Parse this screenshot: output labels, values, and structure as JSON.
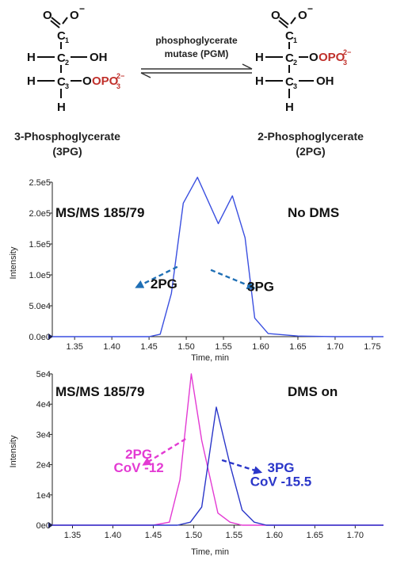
{
  "reaction": {
    "enzyme_line1": "phosphoglycerate",
    "enzyme_line2": "mutase (PGM)",
    "left_name_line1": "3-Phosphoglycerate",
    "left_name_line2": "(3PG)",
    "right_name_line1": "2-Phosphoglycerate",
    "right_name_line2": "(2PG)",
    "atoms": {
      "O": "O",
      "Ominus": "O",
      "minus": "−",
      "H": "H",
      "OH": "OH",
      "C": "C",
      "c1": "1",
      "c2": "2",
      "c3": "3",
      "OPO3": "OPO",
      "p3": "3",
      "p2m": "2−"
    },
    "colors": {
      "phosphate": "#c0302b"
    }
  },
  "chart_data": [
    {
      "type": "line",
      "title": "MS/MS 185/79",
      "subtitle": "No DMS",
      "xlabel": "Time, min",
      "ylabel": "Intensity",
      "xlim": [
        1.32,
        1.765
      ],
      "ylim": [
        0,
        250000
      ],
      "xticks": [
        1.35,
        1.4,
        1.45,
        1.5,
        1.55,
        1.6,
        1.65,
        1.7,
        1.75
      ],
      "xtick_labels": [
        "1.35",
        "1.40",
        "1.45",
        "1.50",
        "1.55",
        "1.60",
        "1.65",
        "1.70",
        "1.75"
      ],
      "yticks": [
        0,
        50000,
        100000,
        150000,
        200000,
        250000
      ],
      "ytick_labels": [
        "0.0e0",
        "5.0e4",
        "1.0e5",
        "1.5e5",
        "2.0e5",
        "2.5e5"
      ],
      "grid": false,
      "series": [
        {
          "color": "#3a4fe0",
          "x": [
            1.32,
            1.35,
            1.4,
            1.45,
            1.465,
            1.48,
            1.496,
            1.515,
            1.543,
            1.562,
            1.579,
            1.592,
            1.61,
            1.65,
            1.7,
            1.765
          ],
          "y": [
            0,
            0,
            0,
            0,
            4000,
            70000,
            216000,
            258000,
            183000,
            228000,
            160000,
            30000,
            5000,
            1000,
            0,
            0
          ]
        }
      ],
      "annotations": [
        {
          "text": "2PG",
          "x": 1.47,
          "y": 78000,
          "color": "#111111",
          "arrow_from": [
            1.488,
            113000
          ],
          "arrow_to": [
            1.433,
            80000
          ],
          "arrow_color": "#1f6fb5"
        },
        {
          "text": "3PG",
          "x": 1.6,
          "y": 74000,
          "color": "#111111",
          "arrow_from": [
            1.533,
            108000
          ],
          "arrow_to": [
            1.591,
            79000
          ],
          "arrow_color": "#1f6fb5"
        }
      ]
    },
    {
      "type": "line",
      "title": "MS/MS 185/79",
      "subtitle": "DMS on",
      "xlabel": "Time, min",
      "ylabel": "Intensity",
      "xlim": [
        1.325,
        1.735
      ],
      "ylim": [
        0,
        50000
      ],
      "xticks": [
        1.35,
        1.4,
        1.45,
        1.5,
        1.55,
        1.6,
        1.65,
        1.7
      ],
      "xtick_labels": [
        "1.35",
        "1.40",
        "1.45",
        "1.50",
        "1.55",
        "1.60",
        "1.65",
        "1.70"
      ],
      "yticks": [
        0,
        10000,
        20000,
        30000,
        40000,
        50000
      ],
      "ytick_labels": [
        "0e0",
        "1e4",
        "2e4",
        "3e4",
        "4e4",
        "5e4"
      ],
      "grid": false,
      "series": [
        {
          "color": "#e33ad3",
          "x": [
            1.325,
            1.45,
            1.47,
            1.483,
            1.497,
            1.51,
            1.53,
            1.545,
            1.56,
            1.735
          ],
          "y": [
            0,
            0,
            1000,
            15000,
            50000,
            28000,
            4000,
            1000,
            0,
            0
          ]
        },
        {
          "color": "#2a36c9",
          "x": [
            1.325,
            1.48,
            1.496,
            1.51,
            1.528,
            1.545,
            1.56,
            1.575,
            1.59,
            1.735
          ],
          "y": [
            0,
            0,
            1000,
            6000,
            39000,
            20000,
            5000,
            1000,
            0,
            0
          ]
        }
      ],
      "annotations": [
        {
          "text": "2PG",
          "x": 1.432,
          "y": 22000,
          "color": "#e33ad3",
          "arrow_from": [
            1.49,
            28500
          ],
          "arrow_to": [
            1.438,
            20000
          ],
          "arrow_color": "#e33ad3"
        },
        {
          "text": "CoV -12",
          "x": 1.432,
          "y": 17500,
          "color": "#e33ad3"
        },
        {
          "text": "3PG",
          "x": 1.608,
          "y": 17500,
          "color": "#2a36c9",
          "arrow_from": [
            1.535,
            21500
          ],
          "arrow_to": [
            1.583,
            17500
          ],
          "arrow_color": "#2a36c9"
        },
        {
          "text": "CoV -15.5",
          "x": 1.608,
          "y": 13000,
          "color": "#2a36c9"
        }
      ]
    }
  ]
}
